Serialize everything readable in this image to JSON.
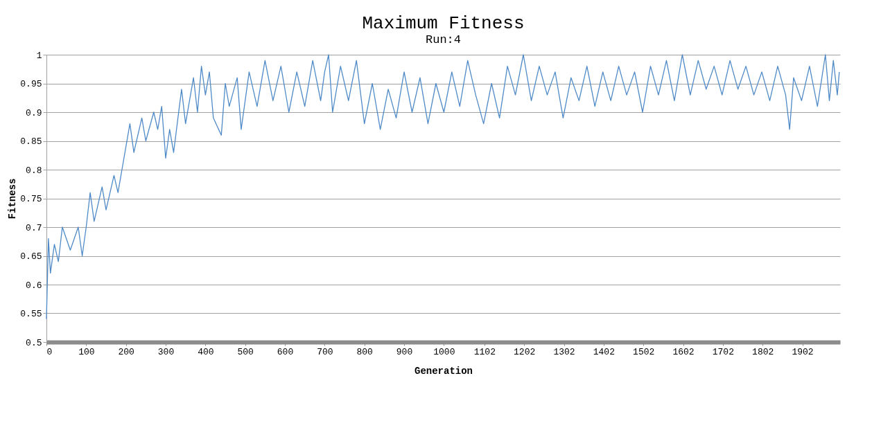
{
  "chart_data": {
    "type": "line",
    "title": "Maximum Fitness",
    "subtitle": "Run:4",
    "xlabel": "Generation",
    "ylabel": "Fitness",
    "x": [
      0,
      5,
      10,
      20,
      30,
      40,
      60,
      80,
      90,
      100,
      110,
      120,
      140,
      150,
      170,
      180,
      190,
      200,
      210,
      220,
      240,
      250,
      270,
      280,
      290,
      300,
      310,
      320,
      340,
      350,
      370,
      380,
      390,
      400,
      410,
      420,
      440,
      450,
      460,
      480,
      490,
      510,
      530,
      550,
      570,
      590,
      610,
      630,
      650,
      670,
      690,
      700,
      710,
      720,
      740,
      760,
      780,
      800,
      820,
      840,
      860,
      880,
      900,
      920,
      940,
      960,
      980,
      1000,
      1020,
      1040,
      1060,
      1080,
      1100,
      1120,
      1140,
      1160,
      1180,
      1200,
      1220,
      1240,
      1260,
      1280,
      1300,
      1320,
      1340,
      1360,
      1380,
      1400,
      1420,
      1440,
      1460,
      1480,
      1500,
      1520,
      1540,
      1560,
      1580,
      1600,
      1620,
      1640,
      1660,
      1680,
      1700,
      1720,
      1740,
      1760,
      1780,
      1800,
      1820,
      1840,
      1860,
      1870,
      1880,
      1900,
      1920,
      1940,
      1960,
      1970,
      1980,
      1990,
      1995
    ],
    "series": [
      {
        "color": "#4f8ac8",
        "values": [
          0.54,
          0.68,
          0.62,
          0.67,
          0.64,
          0.7,
          0.66,
          0.7,
          0.65,
          0.7,
          0.76,
          0.71,
          0.77,
          0.73,
          0.79,
          0.76,
          0.8,
          0.84,
          0.88,
          0.83,
          0.89,
          0.85,
          0.9,
          0.87,
          0.91,
          0.82,
          0.87,
          0.83,
          0.94,
          0.88,
          0.96,
          0.9,
          0.98,
          0.93,
          0.97,
          0.89,
          0.86,
          0.95,
          0.91,
          0.96,
          0.87,
          0.97,
          0.91,
          0.99,
          0.92,
          0.98,
          0.9,
          0.97,
          0.91,
          0.99,
          0.92,
          0.97,
          1.0,
          0.9,
          0.98,
          0.92,
          0.99,
          0.88,
          0.95,
          0.87,
          0.94,
          0.89,
          0.97,
          0.9,
          0.96,
          0.88,
          0.95,
          0.9,
          0.97,
          0.91,
          0.99,
          0.93,
          0.88,
          0.95,
          0.89,
          0.98,
          0.93,
          1.0,
          0.92,
          0.98,
          0.93,
          0.97,
          0.89,
          0.96,
          0.92,
          0.98,
          0.91,
          0.97,
          0.92,
          0.98,
          0.93,
          0.97,
          0.9,
          0.98,
          0.93,
          0.99,
          0.92,
          1.0,
          0.93,
          0.99,
          0.94,
          0.98,
          0.93,
          0.99,
          0.94,
          0.98,
          0.93,
          0.97,
          0.92,
          0.98,
          0.93,
          0.87,
          0.96,
          0.92,
          0.98,
          0.91,
          1.0,
          0.92,
          0.99,
          0.93,
          0.97
        ]
      }
    ],
    "xlim": [
      0,
      1997
    ],
    "xticks": [
      0,
      100,
      200,
      300,
      400,
      500,
      600,
      700,
      800,
      900,
      1000,
      1102,
      1202,
      1302,
      1402,
      1502,
      1602,
      1702,
      1802,
      1902
    ],
    "ylim": [
      0.5,
      1
    ],
    "yticks": [
      0.5,
      0.55,
      0.6,
      0.65,
      0.7,
      0.75,
      0.8,
      0.85,
      0.9,
      0.95,
      1
    ],
    "grid": "y",
    "line_style": "solid",
    "marker": "none"
  }
}
